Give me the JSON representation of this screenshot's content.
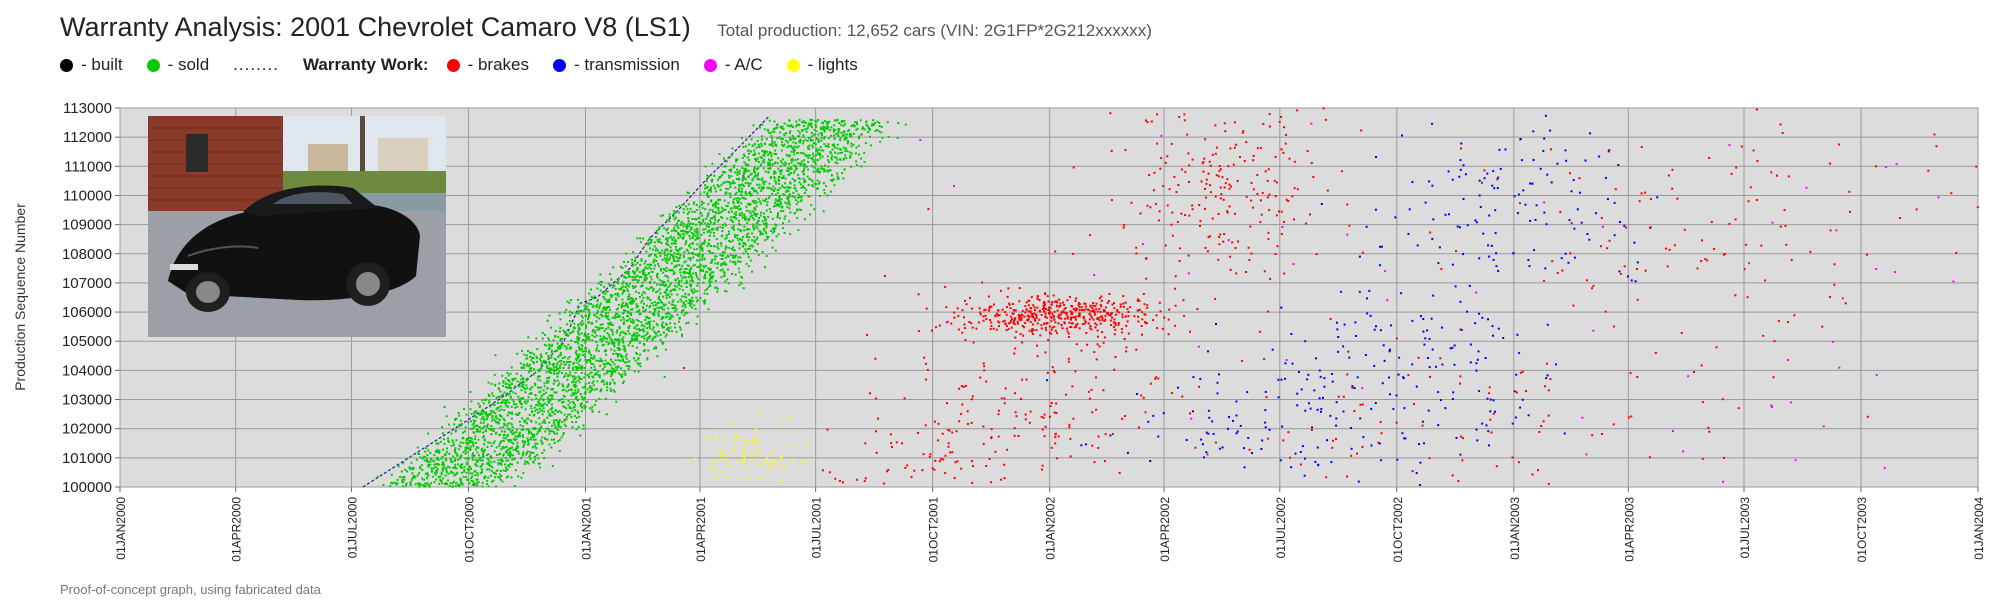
{
  "page": {
    "title": "Warranty Analysis: 2001 Chevrolet Camaro V8 (LS1)",
    "subtitle": "Total production: 12,652 cars (VIN: 2G1FP*2G212xxxxxx)",
    "footer": "Proof-of-concept graph, using fabricated data"
  },
  "legend": {
    "built": {
      "label": "- built",
      "color": "#000000"
    },
    "sold": {
      "label": "- sold",
      "color": "#00cc00"
    },
    "separator": "........",
    "warranty_heading": "Warranty Work:",
    "brakes": {
      "label": "- brakes",
      "color": "#ff0000"
    },
    "transmission": {
      "label": "- transmission",
      "color": "#0000ff"
    },
    "ac": {
      "label": "- A/C",
      "color": "#ff00ff"
    },
    "lights": {
      "label": "- lights",
      "color": "#ffff00"
    }
  },
  "chart_data": {
    "type": "scatter",
    "title": "Warranty Analysis: 2001 Chevrolet Camaro V8 (LS1)",
    "xlabel": "",
    "ylabel": "Production Sequence Number",
    "x_ticks": [
      "01JAN2000",
      "01APR2000",
      "01JUL2000",
      "01OCT2000",
      "01JAN2001",
      "01APR2001",
      "01JUL2001",
      "01OCT2001",
      "01JAN2002",
      "01APR2002",
      "01JUL2002",
      "01OCT2002",
      "01JAN2003",
      "01APR2003",
      "01JUL2003",
      "01OCT2003",
      "01JAN2004"
    ],
    "y_ticks": [
      100000,
      101000,
      102000,
      103000,
      104000,
      105000,
      106000,
      107000,
      108000,
      109000,
      110000,
      111000,
      112000,
      113000
    ],
    "xlim": [
      "01JAN2000",
      "01JAN2004"
    ],
    "ylim": [
      100000,
      113000
    ],
    "grid": true,
    "legend_position": "top",
    "background_color": "#dcdcdc",
    "series": [
      {
        "name": "built",
        "color": "#1a237e",
        "kind": "line",
        "points": [
          [
            "2000-07-10",
            100000
          ],
          [
            "2000-08-15",
            101000
          ],
          [
            "2000-09-20",
            102000
          ],
          [
            "2000-10-25",
            103000
          ],
          [
            "2000-11-25",
            104000
          ],
          [
            "2000-12-15",
            105000
          ],
          [
            "2000-12-28",
            106300
          ],
          [
            "2001-01-10",
            106500
          ],
          [
            "2001-02-05",
            107500
          ],
          [
            "2001-02-20",
            108500
          ],
          [
            "2001-03-15",
            109500
          ],
          [
            "2001-04-05",
            110500
          ],
          [
            "2001-05-05",
            111800
          ],
          [
            "2001-05-25",
            112700
          ]
        ]
      },
      {
        "name": "sold",
        "color": "#00cc00",
        "kind": "cloud",
        "count": 4200,
        "description_points": [
          [
            "2000-09-01",
            100000
          ],
          [
            "2001-01-01",
            105000
          ],
          [
            "2001-07-01",
            112600
          ]
        ],
        "spread_days": 75
      },
      {
        "name": "brakes",
        "color": "#ff0000",
        "kind": "scatter",
        "clusters": [
          {
            "center": [
              "2002-01-15",
              105900
            ],
            "spread": [
              40,
              350
            ],
            "n": 450
          },
          {
            "center": [
              "2001-12-15",
              103500
            ],
            "spread": [
              60,
              1800
            ],
            "n": 180
          },
          {
            "center": [
              "2002-05-15",
              110200
            ],
            "spread": [
              45,
              1700
            ],
            "n": 220
          },
          {
            "center": [
              "2003-05-15",
              109200
            ],
            "spread": [
              90,
              2600
            ],
            "n": 140
          },
          {
            "center": [
              "2002-12-01",
              102200
            ],
            "spread": [
              110,
              1400
            ],
            "n": 90
          },
          {
            "center": [
              "2001-10-01",
              101000
            ],
            "spread": [
              50,
              700
            ],
            "n": 70
          }
        ]
      },
      {
        "name": "transmission",
        "color": "#0000ff",
        "kind": "scatter",
        "clusters": [
          {
            "center": [
              "2002-07-01",
              102200
            ],
            "spread": [
              60,
              1200
            ],
            "n": 110
          },
          {
            "center": [
              "2002-10-15",
              104500
            ],
            "spread": [
              55,
              2200
            ],
            "n": 150
          },
          {
            "center": [
              "2003-01-01",
              109500
            ],
            "spread": [
              55,
              1800
            ],
            "n": 120
          }
        ]
      },
      {
        "name": "A/C",
        "color": "#ff00ff",
        "kind": "scatter",
        "clusters": [
          {
            "center": [
              "2003-08-01",
              106000
            ],
            "spread": [
              160,
              4200
            ],
            "n": 45
          },
          {
            "center": [
              "2002-04-01",
              108500
            ],
            "spread": [
              140,
              3800
            ],
            "n": 25
          }
        ]
      },
      {
        "name": "lights",
        "color": "#ffff00",
        "kind": "scatter",
        "clusters": [
          {
            "center": [
              "2001-05-10",
              101100
            ],
            "spread": [
              22,
              500
            ],
            "n": 80
          }
        ]
      }
    ]
  }
}
